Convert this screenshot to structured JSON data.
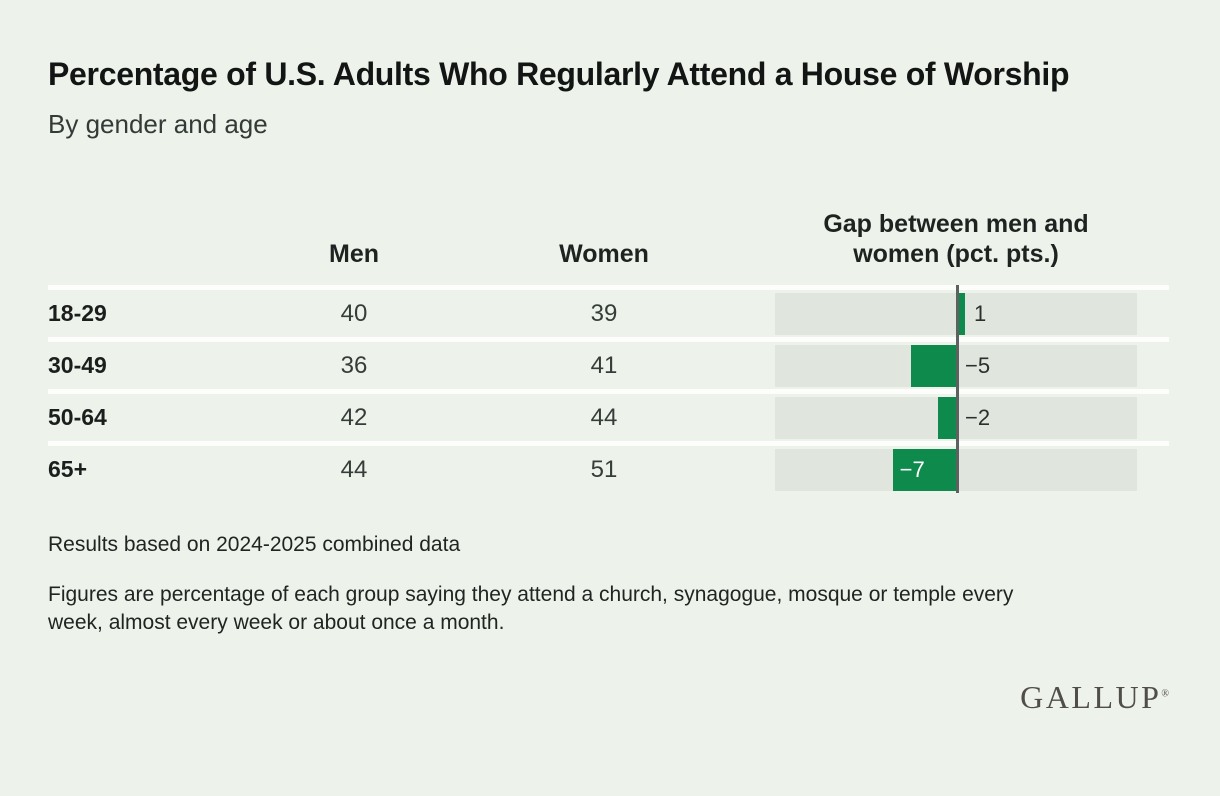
{
  "page": {
    "title": "Percentage of U.S. Adults Who Regularly Attend a House of Worship",
    "subtitle": "By gender and age",
    "source_note": "Results based on 2024-2025 combined data",
    "method_note": "Figures are percentage of each group saying they attend a church, synagogue, mosque or temple every week, almost every week or about once a month.",
    "brand": "GALLUP",
    "brand_mark": "®"
  },
  "colors": {
    "background": "#edf3ea",
    "bar_green": "#0e8a4c",
    "bar_track_gray": "#e0e5dd",
    "zero_line_gray": "#5c625f",
    "row_separator_white": "#fdfefc"
  },
  "chart_data": {
    "type": "table",
    "embedded_chart": "bar",
    "columns": {
      "group": "",
      "men": "Men",
      "women": "Women",
      "gap": "Gap between men and women (pct. pts.)"
    },
    "rows": [
      {
        "group": "18-29",
        "men": 40,
        "women": 39,
        "gap": 1,
        "gap_label": "1",
        "label_inside": false
      },
      {
        "group": "30-49",
        "men": 36,
        "women": 41,
        "gap": -5,
        "gap_label": "−5",
        "label_inside": false
      },
      {
        "group": "50-64",
        "men": 42,
        "women": 44,
        "gap": -2,
        "gap_label": "−2",
        "label_inside": false
      },
      {
        "group": "65+",
        "men": 44,
        "women": 51,
        "gap": -7,
        "gap_label": "−7",
        "label_inside": true
      }
    ],
    "gap_axis": {
      "min": -20,
      "max": 20,
      "grid": false,
      "zero_line": true
    }
  }
}
